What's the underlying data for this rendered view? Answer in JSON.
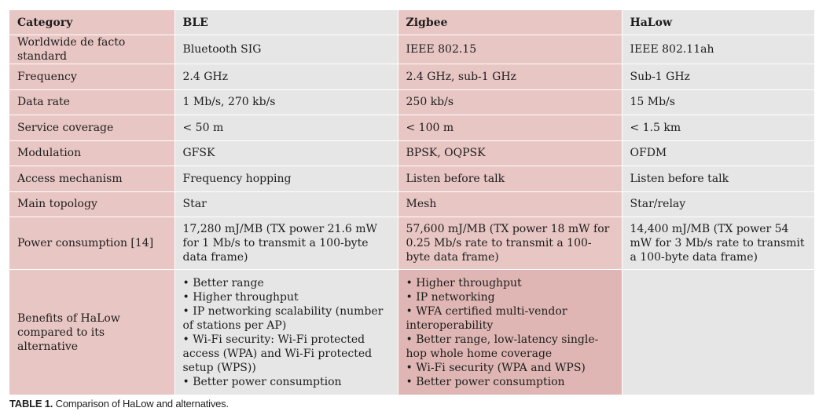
{
  "table": {
    "headers": [
      "Category",
      "BLE",
      "Zigbee",
      "HaLow"
    ],
    "rows": [
      [
        "Worldwide de facto standard",
        "Bluetooth SIG",
        "IEEE 802.15",
        "IEEE 802.11ah"
      ],
      [
        "Frequency",
        "2.4 GHz",
        "2.4 GHz, sub-1 GHz",
        "Sub-1 GHz"
      ],
      [
        "Data rate",
        "1 Mb/s, 270 kb/s",
        "250 kb/s",
        "15 Mb/s"
      ],
      [
        "Service coverage",
        "< 50 m",
        "< 100 m",
        "< 1.5 km"
      ],
      [
        "Modulation",
        "GFSK",
        "BPSK, OQPSK",
        "OFDM"
      ],
      [
        "Access mechanism",
        "Frequency hopping",
        "Listen before talk",
        "Listen before talk"
      ],
      [
        "Main topology",
        "Star",
        "Mesh",
        "Star/relay"
      ],
      [
        "Power consumption [14]",
        "17,280 mJ/MB (TX power 21.6 mW for 1 Mb/s to transmit a 100-byte data frame)",
        "57,600 mJ/MB (TX power 18 mW for 0.25 Mb/s rate to transmit a 100-byte data frame)",
        "14,400 mJ/MB (TX power 54 mW for 3 Mb/s rate to transmit a 100-byte data frame)"
      ]
    ],
    "benefits": {
      "label": "Benefits of HaLow compared to its alternative",
      "ble": [
        "• Better range",
        "• Higher throughput",
        "• IP networking scalability (number of stations per AP)",
        "• Wi-Fi security: Wi-Fi protected access (WPA) and Wi-Fi protected setup (WPS))",
        "• Better power consumption"
      ],
      "zigbee": [
        "• Higher throughput",
        "• IP networking",
        "• WFA certified multi-vendor interoperability",
        "• Better range, low-latency single-hop whole home coverage",
        "• Wi-Fi security (WPA and WPS)",
        "• Better power consumption"
      ],
      "halow": ""
    }
  },
  "caption": {
    "label": "TABLE 1.",
    "text": "Comparison of HaLow and alternatives."
  }
}
